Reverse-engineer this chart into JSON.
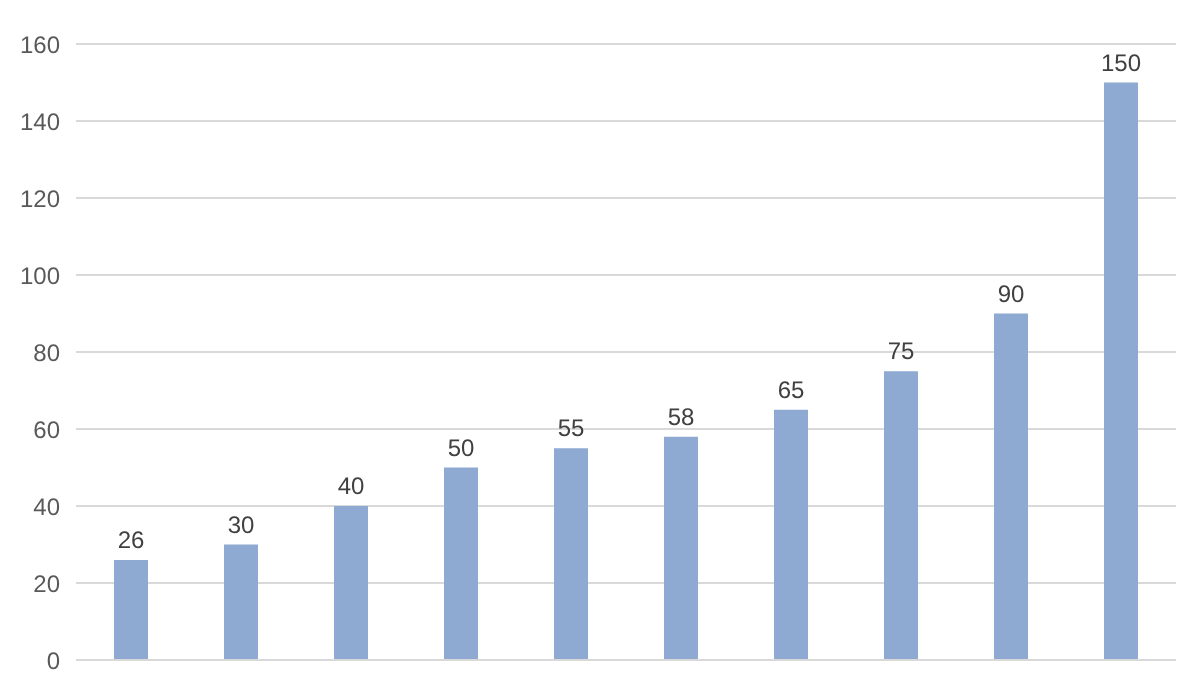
{
  "chart_data": {
    "type": "bar",
    "categories": [
      null,
      null,
      null,
      null,
      null,
      null,
      null,
      null,
      null,
      null
    ],
    "values": [
      26,
      30,
      40,
      50,
      55,
      58,
      65,
      75,
      90,
      150
    ],
    "color": "#8eaad2",
    "ylim": [
      0,
      160
    ],
    "yticks": [
      0,
      20,
      40,
      60,
      80,
      100,
      120,
      140,
      160
    ],
    "grid": "y",
    "data_labels": true,
    "tick_labels": "y"
  }
}
